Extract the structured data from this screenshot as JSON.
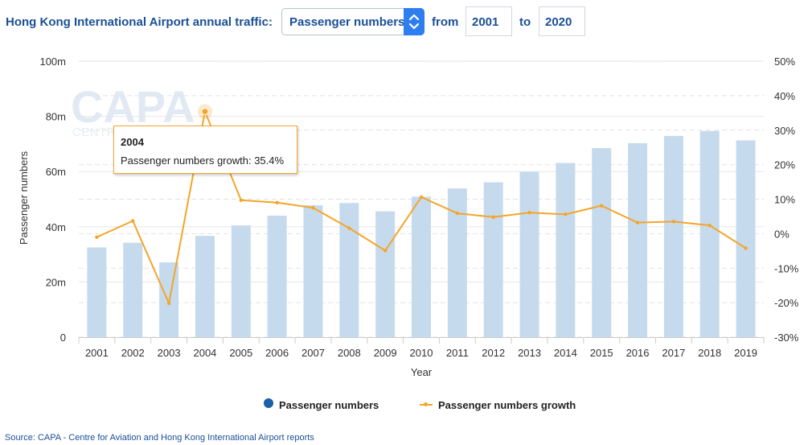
{
  "header": {
    "title": "Hong Kong International Airport annual traffic:",
    "metric_selected": "Passenger numbers",
    "from_label": "from",
    "from_year": "2001",
    "to_label": "to",
    "to_year": "2020"
  },
  "watermark": {
    "text": "CAPA",
    "subtext": "CENTRE FOR AVIATION"
  },
  "tooltip": {
    "title": "2004",
    "body": "Passenger numbers growth: 35.4%"
  },
  "legend": {
    "bars_label": "Passenger numbers",
    "line_label": "Passenger numbers growth"
  },
  "source": "Source: CAPA - Centre for Aviation and Hong Kong International Airport reports",
  "colors": {
    "bar": "#c6daee",
    "line": "#f4a52a",
    "title": "#1a4f96",
    "legend_dot": "#1a5fa8"
  },
  "chart_data": {
    "type": "bar",
    "categories": [
      "2001",
      "2002",
      "2003",
      "2004",
      "2005",
      "2006",
      "2007",
      "2008",
      "2009",
      "2010",
      "2011",
      "2012",
      "2013",
      "2014",
      "2015",
      "2016",
      "2017",
      "2018",
      "2019"
    ],
    "series": [
      {
        "name": "Passenger numbers",
        "type": "bar",
        "axis": "left",
        "values": [
          32.5,
          34.2,
          27.1,
          36.7,
          40.5,
          44.0,
          47.8,
          48.6,
          45.6,
          50.9,
          53.9,
          56.1,
          59.9,
          63.1,
          68.5,
          70.3,
          72.9,
          74.7,
          71.3
        ]
      },
      {
        "name": "Passenger numbers growth",
        "type": "line",
        "axis": "right",
        "values": [
          -1.0,
          3.7,
          -20.2,
          35.4,
          9.7,
          9.0,
          7.5,
          1.6,
          -4.9,
          10.6,
          5.9,
          4.8,
          6.1,
          5.6,
          8.1,
          3.2,
          3.5,
          2.4,
          -4.2
        ]
      }
    ],
    "xlabel": "Year",
    "ylabel": "Passenger numbers",
    "y_left": {
      "ylim": [
        0,
        100
      ],
      "ticks": [
        "0",
        "20m",
        "40m",
        "60m",
        "80m",
        "100m"
      ]
    },
    "y_right": {
      "ylim": [
        -30,
        50
      ],
      "ticks": [
        "-30%",
        "-20%",
        "-10%",
        "0%",
        "10%",
        "20%",
        "30%",
        "40%",
        "50%"
      ]
    },
    "grid": true,
    "legend_position": "bottom-center"
  }
}
